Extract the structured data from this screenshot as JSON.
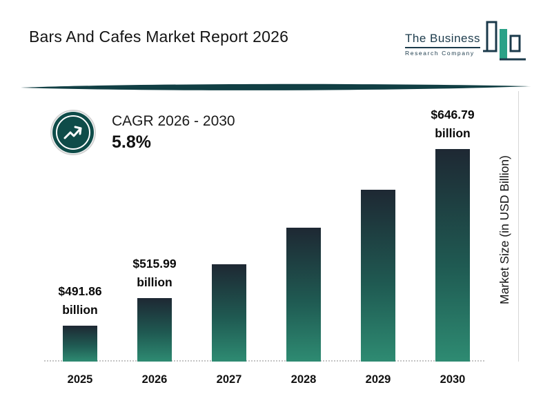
{
  "header": {
    "title": "Bars And Cafes Market Report 2026"
  },
  "logo": {
    "line1": "The Business",
    "line2": "Research Company"
  },
  "cagr": {
    "label": "CAGR 2026 - 2030",
    "value": "5.8%"
  },
  "chart_data": {
    "type": "bar",
    "title": "Bars And Cafes Market Report 2026",
    "categories": [
      "2025",
      "2026",
      "2027",
      "2028",
      "2029",
      "2030"
    ],
    "values": [
      491.86,
      515.99,
      545.92,
      577.58,
      611.08,
      646.79
    ],
    "data_labels": [
      {
        "amount": "$491.86",
        "unit": "billion"
      },
      {
        "amount": "$515.99",
        "unit": "billion"
      },
      null,
      null,
      null,
      {
        "amount": "$646.79",
        "unit": "billion"
      }
    ],
    "xlabel": "",
    "ylabel": "Market Size (in USD Billion)",
    "legend": false,
    "grid": false,
    "baseline_style": "dotted",
    "colors": {
      "bar_top": "#1e2833",
      "bar_bottom": "#2e8b72",
      "accent_teal": "#0f4c49",
      "logo_dark": "#1b3a4b",
      "logo_green": "#2aa187"
    }
  }
}
